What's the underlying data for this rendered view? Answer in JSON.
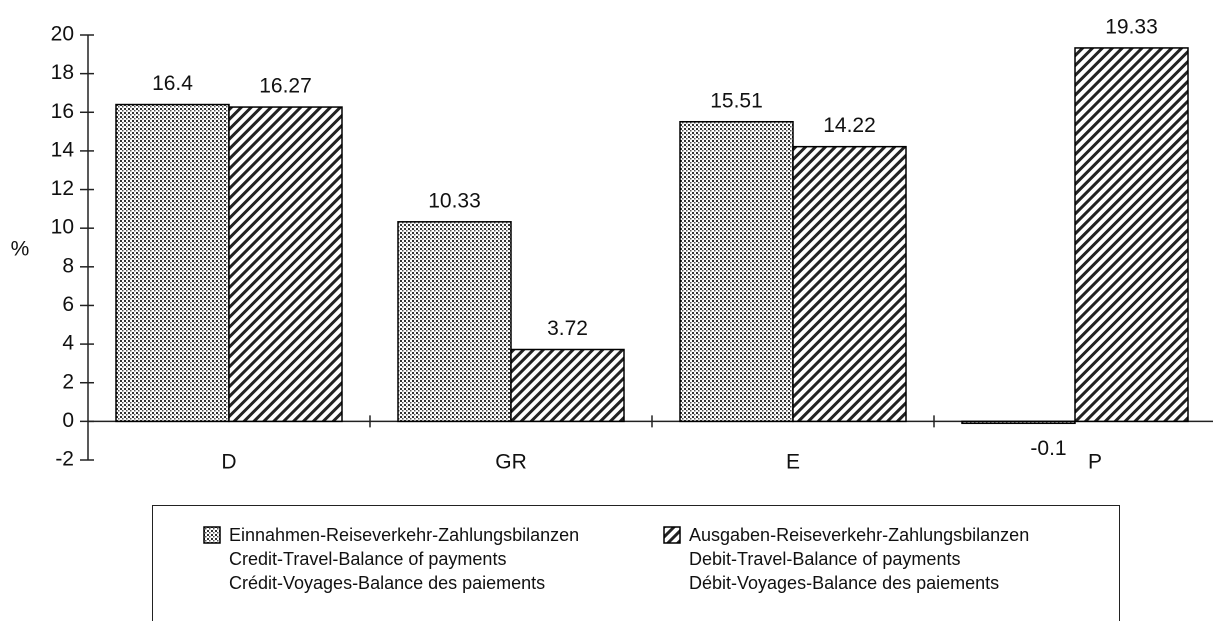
{
  "chart_data": {
    "type": "bar",
    "ylabel": "%",
    "categories": [
      "D",
      "GR",
      "E",
      "P"
    ],
    "series": [
      {
        "name": "Einnahmen-Reiseverkehr-Zahlungsbilanzen\nCredit-Travel-Balance of payments\nCrédit-Voyages-Balance des paiements",
        "color": "#000000",
        "pattern": "dots",
        "values": [
          16.4,
          10.33,
          15.51,
          -0.1
        ]
      },
      {
        "name": "Ausgaben-Reiseverkehr-Zahlungsbilanzen\nDebit-Travel-Balance of payments\nDébit-Voyages-Balance des paiements",
        "color": "#000000",
        "pattern": "hatch",
        "values": [
          16.27,
          3.72,
          14.22,
          19.33
        ]
      }
    ],
    "ylim": [
      -2,
      20
    ],
    "yticks": [
      -2,
      0,
      2,
      4,
      6,
      8,
      10,
      12,
      14,
      16,
      18,
      20
    ],
    "grid": false
  }
}
